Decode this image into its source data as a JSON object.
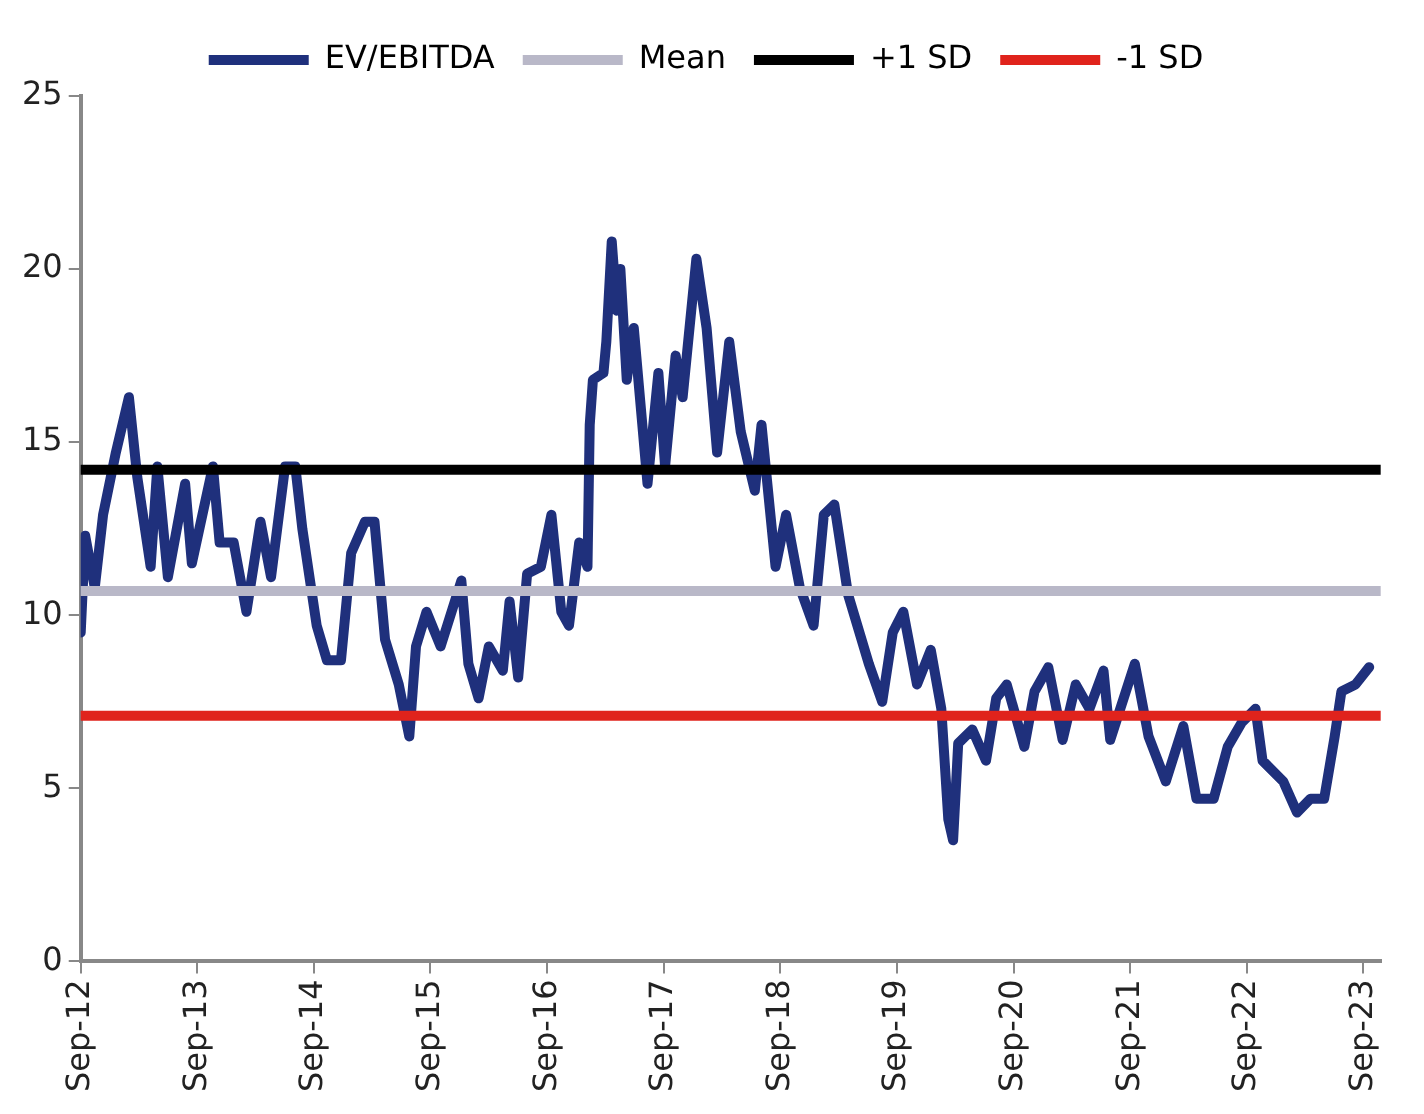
{
  "chart_data": {
    "type": "line",
    "x": [
      "2012-09-01",
      "2012-09-15",
      "2012-10-15",
      "2012-11-10",
      "2012-12-20",
      "2013-01-30",
      "2013-02-25",
      "2013-04-08",
      "2013-04-29",
      "2013-06-01",
      "2013-07-25",
      "2013-08-15",
      "2013-10-20",
      "2013-11-10",
      "2013-12-24",
      "2014-02-02",
      "2014-03-18",
      "2014-04-20",
      "2014-06-03",
      "2014-07-05",
      "2014-07-27",
      "2014-09-10",
      "2014-10-12",
      "2014-11-25",
      "2014-12-27",
      "2015-02-08",
      "2015-03-10",
      "2015-04-12",
      "2015-05-25",
      "2015-06-27",
      "2015-07-18",
      "2015-08-20",
      "2015-10-03",
      "2015-12-07",
      "2015-12-29",
      "2016-01-30",
      "2016-03-02",
      "2016-04-15",
      "2016-05-06",
      "2016-06-02",
      "2016-06-30",
      "2016-08-12",
      "2016-09-14",
      "2016-10-15",
      "2016-11-08",
      "2016-12-10",
      "2017-01-05",
      "2017-01-12",
      "2017-01-22",
      "2017-02-24",
      "2017-03-05",
      "2017-03-22",
      "2017-04-07",
      "2017-04-18",
      "2017-05-08",
      "2017-05-30",
      "2017-07-12",
      "2017-08-15",
      "2017-09-05",
      "2017-10-08",
      "2017-10-30",
      "2017-12-12",
      "2018-01-13",
      "2018-02-15",
      "2018-03-25",
      "2018-04-30",
      "2018-06-13",
      "2018-07-04",
      "2018-08-17",
      "2018-09-19",
      "2018-11-01",
      "2018-12-14",
      "2019-01-15",
      "2019-02-17",
      "2019-04-01",
      "2019-06-05",
      "2019-07-17",
      "2019-08-19",
      "2019-09-21",
      "2019-11-03",
      "2019-12-16",
      "2020-01-18",
      "2020-02-09",
      "2020-02-24",
      "2020-03-11",
      "2020-04-24",
      "2020-06-06",
      "2020-07-08",
      "2020-08-10",
      "2020-10-04",
      "2020-11-05",
      "2020-12-18",
      "2021-02-01",
      "2021-03-14",
      "2021-04-26",
      "2021-06-09",
      "2021-06-30",
      "2021-09-15",
      "2021-10-28",
      "2021-12-21",
      "2022-02-14",
      "2022-03-27",
      "2022-05-20",
      "2022-07-03",
      "2022-08-16",
      "2022-09-28",
      "2022-10-20",
      "2022-12-24",
      "2023-02-05",
      "2023-03-19",
      "2023-05-01",
      "2023-06-03",
      "2023-06-24",
      "2023-08-07",
      "2023-09-19"
    ],
    "series": [
      {
        "name": "EV/EBITDA",
        "color": "#1f307c",
        "values": [
          9.5,
          12.3,
          10.8,
          12.9,
          14.7,
          16.3,
          14.0,
          11.4,
          14.3,
          11.1,
          13.8,
          11.5,
          14.3,
          12.1,
          12.1,
          10.1,
          12.7,
          11.1,
          14.3,
          14.3,
          12.5,
          9.7,
          8.7,
          8.7,
          11.8,
          12.7,
          12.7,
          9.3,
          8.0,
          6.5,
          9.1,
          10.1,
          9.1,
          11.0,
          8.6,
          7.6,
          9.1,
          8.4,
          10.4,
          8.2,
          11.2,
          11.4,
          12.9,
          10.1,
          9.7,
          12.1,
          11.4,
          15.5,
          16.8,
          17.0,
          17.9,
          20.8,
          18.8,
          20.0,
          16.8,
          18.3,
          13.8,
          17.0,
          14.3,
          17.5,
          16.3,
          20.3,
          18.3,
          14.7,
          17.9,
          15.3,
          13.6,
          15.5,
          11.4,
          12.9,
          10.8,
          9.7,
          12.9,
          13.2,
          10.6,
          8.6,
          7.5,
          9.5,
          10.1,
          8.0,
          9.0,
          7.3,
          4.1,
          3.5,
          6.3,
          6.7,
          5.8,
          7.6,
          8.0,
          6.2,
          7.8,
          8.5,
          6.4,
          8.0,
          7.3,
          8.4,
          6.4,
          8.6,
          6.5,
          5.2,
          6.8,
          4.7,
          4.7,
          6.2,
          6.9,
          7.3,
          5.8,
          5.2,
          4.3,
          4.7,
          4.7,
          6.5,
          7.8,
          8.0,
          8.5
        ]
      }
    ],
    "ref_lines": [
      {
        "axis": "y",
        "value": 10.7,
        "label": "Mean",
        "color": "#b9b8c8"
      },
      {
        "axis": "y",
        "value": 14.2,
        "label": "+1 SD",
        "color": "#000000"
      },
      {
        "axis": "y",
        "value": 7.1,
        "label": "-1 SD",
        "color": "#e0231c"
      }
    ],
    "xlim": [
      "2012-09-01",
      "2023-10-25"
    ],
    "xticks": [
      {
        "value": "2012-09-01",
        "label": "Sep-12"
      },
      {
        "value": "2013-09-01",
        "label": "Sep-13"
      },
      {
        "value": "2014-09-01",
        "label": "Sep-14"
      },
      {
        "value": "2015-09-01",
        "label": "Sep-15"
      },
      {
        "value": "2016-09-01",
        "label": "Sep-16"
      },
      {
        "value": "2017-09-01",
        "label": "Sep-17"
      },
      {
        "value": "2018-09-01",
        "label": "Sep-18"
      },
      {
        "value": "2019-09-01",
        "label": "Sep-19"
      },
      {
        "value": "2020-09-01",
        "label": "Sep-20"
      },
      {
        "value": "2021-09-01",
        "label": "Sep-21"
      },
      {
        "value": "2022-09-01",
        "label": "Sep-22"
      },
      {
        "value": "2023-09-01",
        "label": "Sep-23"
      }
    ],
    "ylim": [
      0,
      25
    ],
    "yticks": [
      0,
      5,
      10,
      15,
      20,
      25
    ],
    "grid": false,
    "legend": "top",
    "marker": "none",
    "line_style": "solid"
  }
}
